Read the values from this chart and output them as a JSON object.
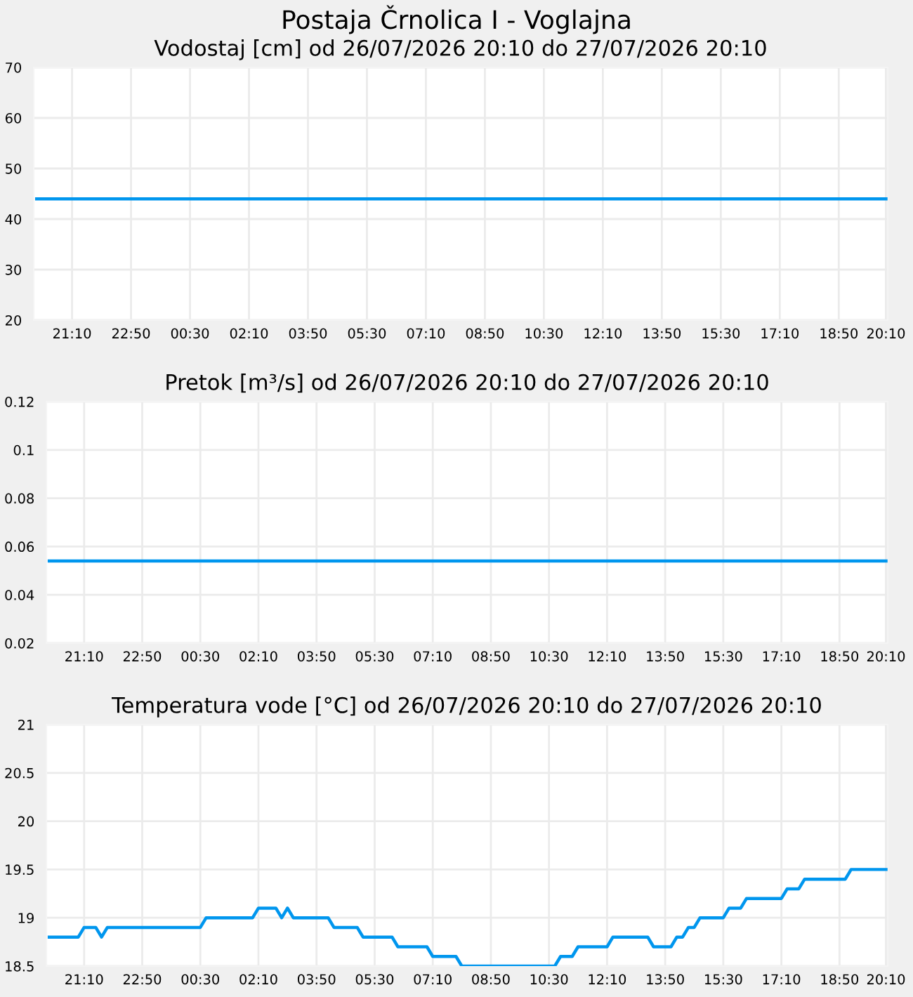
{
  "chart_data": [
    {
      "type": "line",
      "title": "Postaja Črnolica I - Voglajna",
      "subtitle": "Vodostaj [cm] od 26/07/2026 20:10 do 27/07/2026 20:10",
      "series": [
        {
          "color": "#0096ee",
          "x": [
            "2026-07-26T20:10",
            "2026-07-27T20:10"
          ],
          "values": [
            44,
            44
          ]
        }
      ],
      "xlim": [
        "2026-07-26T20:05",
        "2026-07-27T20:13"
      ],
      "xticks": [
        {
          "value": "2026-07-26T21:10",
          "label": "21:10"
        },
        {
          "value": "2026-07-26T22:50",
          "label": "22:50"
        },
        {
          "value": "2026-07-27T00:30",
          "label": "00:30"
        },
        {
          "value": "2026-07-27T02:10",
          "label": "02:10"
        },
        {
          "value": "2026-07-27T03:50",
          "label": "03:50"
        },
        {
          "value": "2026-07-27T05:30",
          "label": "05:30"
        },
        {
          "value": "2026-07-27T07:10",
          "label": "07:10"
        },
        {
          "value": "2026-07-27T08:50",
          "label": "08:50"
        },
        {
          "value": "2026-07-27T10:30",
          "label": "10:30"
        },
        {
          "value": "2026-07-27T12:10",
          "label": "12:10"
        },
        {
          "value": "2026-07-27T13:50",
          "label": "13:50"
        },
        {
          "value": "2026-07-27T15:30",
          "label": "15:30"
        },
        {
          "value": "2026-07-27T17:10",
          "label": "17:10"
        },
        {
          "value": "2026-07-27T18:50",
          "label": "18:50"
        },
        {
          "value": "2026-07-27T20:10",
          "label": "20:10"
        }
      ],
      "ylim": [
        20,
        70
      ],
      "yticks": [
        20,
        30,
        40,
        50,
        60,
        70
      ],
      "grid": true,
      "legend": false,
      "marker": "none",
      "line_style": "solid"
    },
    {
      "type": "line",
      "title": "Pretok [m³/s] od 26/07/2026 20:10 do 27/07/2026 20:10",
      "series": [
        {
          "color": "#0096ee",
          "x": [
            "2026-07-26T20:10",
            "2026-07-27T20:10"
          ],
          "values": [
            0.054,
            0.054
          ]
        }
      ],
      "xlim": [
        "2026-07-26T20:05",
        "2026-07-27T20:13"
      ],
      "xticks": [
        {
          "value": "2026-07-26T21:10",
          "label": "21:10"
        },
        {
          "value": "2026-07-26T22:50",
          "label": "22:50"
        },
        {
          "value": "2026-07-27T00:30",
          "label": "00:30"
        },
        {
          "value": "2026-07-27T02:10",
          "label": "02:10"
        },
        {
          "value": "2026-07-27T03:50",
          "label": "03:50"
        },
        {
          "value": "2026-07-27T05:30",
          "label": "05:30"
        },
        {
          "value": "2026-07-27T07:10",
          "label": "07:10"
        },
        {
          "value": "2026-07-27T08:50",
          "label": "08:50"
        },
        {
          "value": "2026-07-27T10:30",
          "label": "10:30"
        },
        {
          "value": "2026-07-27T12:10",
          "label": "12:10"
        },
        {
          "value": "2026-07-27T13:50",
          "label": "13:50"
        },
        {
          "value": "2026-07-27T15:30",
          "label": "15:30"
        },
        {
          "value": "2026-07-27T17:10",
          "label": "17:10"
        },
        {
          "value": "2026-07-27T18:50",
          "label": "18:50"
        },
        {
          "value": "2026-07-27T20:10",
          "label": "20:10"
        }
      ],
      "ylim": [
        0.02,
        0.12
      ],
      "yticks": [
        0.02,
        0.04,
        0.06,
        0.08,
        0.1,
        0.12
      ],
      "grid": true,
      "legend": false,
      "marker": "none",
      "line_style": "solid"
    },
    {
      "type": "line",
      "title": "Temperatura vode [°C] od 26/07/2026 20:10 do 27/07/2026 20:10",
      "series": [
        {
          "color": "#0096ee",
          "x": [
            "2026-07-26T20:10",
            "2026-07-26T21:00",
            "2026-07-26T21:10",
            "2026-07-26T21:30",
            "2026-07-26T21:40",
            "2026-07-26T21:50",
            "2026-07-27T00:30",
            "2026-07-27T00:40",
            "2026-07-27T02:00",
            "2026-07-27T02:10",
            "2026-07-27T02:40",
            "2026-07-27T02:50",
            "2026-07-27T03:00",
            "2026-07-27T03:10",
            "2026-07-27T04:10",
            "2026-07-27T04:20",
            "2026-07-27T05:00",
            "2026-07-27T05:10",
            "2026-07-27T06:00",
            "2026-07-27T06:10",
            "2026-07-27T07:00",
            "2026-07-27T07:10",
            "2026-07-27T07:50",
            "2026-07-27T08:00",
            "2026-07-27T10:40",
            "2026-07-27T10:50",
            "2026-07-27T11:10",
            "2026-07-27T11:20",
            "2026-07-27T12:10",
            "2026-07-27T12:20",
            "2026-07-27T13:20",
            "2026-07-27T13:30",
            "2026-07-27T14:00",
            "2026-07-27T14:10",
            "2026-07-27T14:20",
            "2026-07-27T14:30",
            "2026-07-27T14:40",
            "2026-07-27T14:50",
            "2026-07-27T15:30",
            "2026-07-27T15:40",
            "2026-07-27T16:00",
            "2026-07-27T16:10",
            "2026-07-27T17:10",
            "2026-07-27T17:20",
            "2026-07-27T17:40",
            "2026-07-27T17:50",
            "2026-07-27T19:00",
            "2026-07-27T19:10",
            "2026-07-27T20:10"
          ],
          "values": [
            18.8,
            18.8,
            18.9,
            18.9,
            18.8,
            18.9,
            18.9,
            19.0,
            19.0,
            19.1,
            19.1,
            19.0,
            19.1,
            19.0,
            19.0,
            18.9,
            18.9,
            18.8,
            18.8,
            18.7,
            18.7,
            18.6,
            18.6,
            18.5,
            18.5,
            18.6,
            18.6,
            18.7,
            18.7,
            18.8,
            18.8,
            18.7,
            18.7,
            18.8,
            18.8,
            18.9,
            18.9,
            19.0,
            19.0,
            19.1,
            19.1,
            19.2,
            19.2,
            19.3,
            19.3,
            19.4,
            19.4,
            19.5,
            19.5
          ]
        }
      ],
      "xlim": [
        "2026-07-26T20:05",
        "2026-07-27T20:13"
      ],
      "xticks": [
        {
          "value": "2026-07-26T21:10",
          "label": "21:10"
        },
        {
          "value": "2026-07-26T22:50",
          "label": "22:50"
        },
        {
          "value": "2026-07-27T00:30",
          "label": "00:30"
        },
        {
          "value": "2026-07-27T02:10",
          "label": "02:10"
        },
        {
          "value": "2026-07-27T03:50",
          "label": "03:50"
        },
        {
          "value": "2026-07-27T05:30",
          "label": "05:30"
        },
        {
          "value": "2026-07-27T07:10",
          "label": "07:10"
        },
        {
          "value": "2026-07-27T08:50",
          "label": "08:50"
        },
        {
          "value": "2026-07-27T10:30",
          "label": "10:30"
        },
        {
          "value": "2026-07-27T12:10",
          "label": "12:10"
        },
        {
          "value": "2026-07-27T13:50",
          "label": "13:50"
        },
        {
          "value": "2026-07-27T15:30",
          "label": "15:30"
        },
        {
          "value": "2026-07-27T17:10",
          "label": "17:10"
        },
        {
          "value": "2026-07-27T18:50",
          "label": "18:50"
        },
        {
          "value": "2026-07-27T20:10",
          "label": "20:10"
        }
      ],
      "ylim": [
        18.5,
        21
      ],
      "yticks": [
        18.5,
        19,
        19.5,
        20,
        20.5,
        21
      ],
      "grid": true,
      "legend": false,
      "marker": "none",
      "line_style": "solid"
    }
  ]
}
